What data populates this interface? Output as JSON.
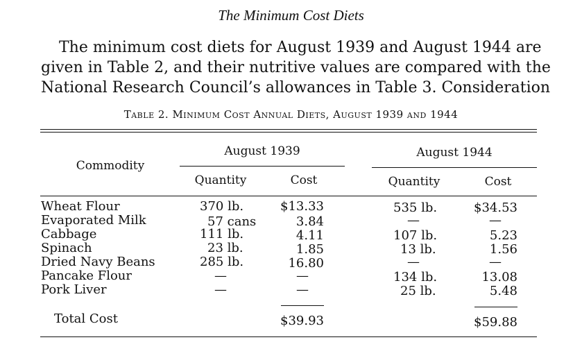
{
  "section_heading": "The Minimum Cost Diets",
  "paragraph_lines": [
    "The minimum cost diets for August 1939 and August 1944 are",
    "given in Table 2, and their nutritive values are compared with the",
    "National Research Council’s allowances in Table 3. Consideration"
  ],
  "table": {
    "caption": "Table 2. Minimum Cost Annual Diets, August 1939 and 1944",
    "commodity_header": "Commodity",
    "group_1939": "August 1939",
    "group_1944": "August 1944",
    "quantity_header": "Quantity",
    "cost_header": "Cost",
    "rows": [
      {
        "commodity": "Wheat Flour",
        "q1939": "370 lb.",
        "c1939": "$13.33",
        "q1944": "535 lb.",
        "c1944": "$34.53"
      },
      {
        "commodity": "Evaporated Milk",
        "q1939": "57 cans",
        "c1939": "3.84",
        "q1944": "—",
        "c1944": "—"
      },
      {
        "commodity": "Cabbage",
        "q1939": "111 lb.",
        "c1939": "4.11",
        "q1944": "107 lb.",
        "c1944": "5.23"
      },
      {
        "commodity": "Spinach",
        "q1939": "23 lb.",
        "c1939": "1.85",
        "q1944": "13 lb.",
        "c1944": "1.56"
      },
      {
        "commodity": "Dried Navy Beans",
        "q1939": "285 lb.",
        "c1939": "16.80",
        "q1944": "—",
        "c1944": "—"
      },
      {
        "commodity": "Pancake Flour",
        "q1939": "—",
        "c1939": "—",
        "q1944": "134 lb.",
        "c1944": "13.08"
      },
      {
        "commodity": "Pork Liver",
        "q1939": "—",
        "c1939": "—",
        "q1944": "25 lb.",
        "c1944": "5.48"
      }
    ],
    "total_label": "Total Cost",
    "total_1939": "$39.93",
    "total_1944": "$59.88"
  }
}
